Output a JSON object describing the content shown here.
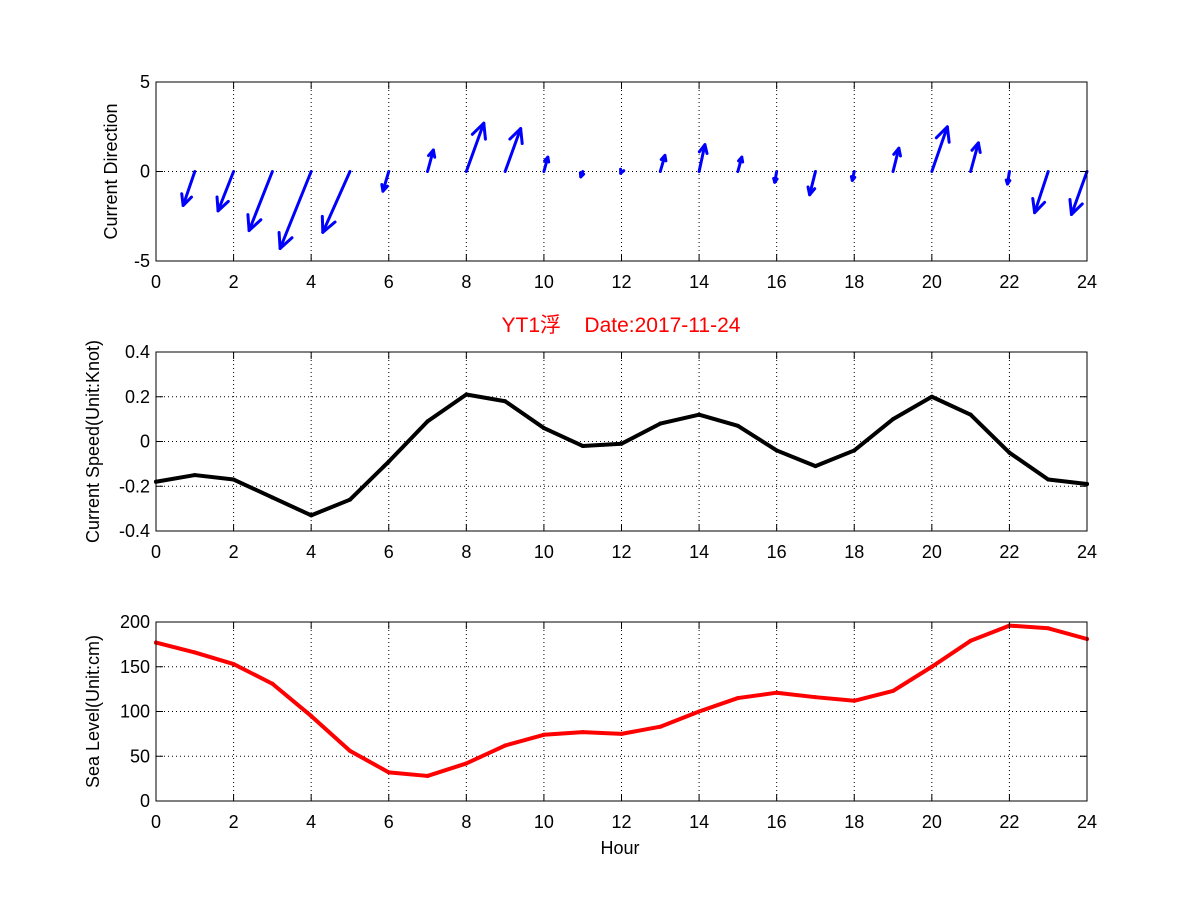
{
  "figure": {
    "title": "YT1浮    Date:2017-11-24",
    "title_color": "#ff0000"
  },
  "chart_data": [
    {
      "type": "quiver",
      "ylabel": "Current Direction",
      "xlim": [
        0,
        24
      ],
      "ylim": [
        -5,
        5
      ],
      "xticks": [
        "0",
        "2",
        "4",
        "6",
        "8",
        "10",
        "12",
        "14",
        "16",
        "18",
        "20",
        "22",
        "24"
      ],
      "yticks": [
        "-5",
        "0",
        "5"
      ],
      "grid": true,
      "color": "#0000ff",
      "vectors": [
        {
          "x": 1,
          "u": -0.3,
          "v": -1.9
        },
        {
          "x": 2,
          "u": -0.4,
          "v": -2.2
        },
        {
          "x": 3,
          "u": -0.6,
          "v": -3.3
        },
        {
          "x": 4,
          "u": -0.8,
          "v": -4.3
        },
        {
          "x": 5,
          "u": -0.7,
          "v": -3.4
        },
        {
          "x": 6,
          "u": -0.15,
          "v": -1.1
        },
        {
          "x": 7,
          "u": 0.15,
          "v": 1.2
        },
        {
          "x": 8,
          "u": 0.45,
          "v": 2.7
        },
        {
          "x": 9,
          "u": 0.4,
          "v": 2.4
        },
        {
          "x": 10,
          "u": 0.1,
          "v": 0.8
        },
        {
          "x": 11,
          "u": -0.05,
          "v": -0.3
        },
        {
          "x": 12,
          "u": -0.02,
          "v": -0.1
        },
        {
          "x": 13,
          "u": 0.12,
          "v": 0.9
        },
        {
          "x": 14,
          "u": 0.15,
          "v": 1.5
        },
        {
          "x": 15,
          "u": 0.1,
          "v": 0.8
        },
        {
          "x": 16,
          "u": -0.05,
          "v": -0.6
        },
        {
          "x": 17,
          "u": -0.15,
          "v": -1.3
        },
        {
          "x": 18,
          "u": -0.05,
          "v": -0.5
        },
        {
          "x": 19,
          "u": 0.15,
          "v": 1.3
        },
        {
          "x": 20,
          "u": 0.4,
          "v": 2.5
        },
        {
          "x": 21,
          "u": 0.2,
          "v": 1.6
        },
        {
          "x": 22,
          "u": -0.05,
          "v": -0.7
        },
        {
          "x": 23,
          "u": -0.35,
          "v": -2.3
        },
        {
          "x": 24,
          "u": -0.4,
          "v": -2.4
        }
      ]
    },
    {
      "type": "line",
      "ylabel": "Current Speed(Unit:Knot)",
      "xlim": [
        0,
        24
      ],
      "ylim": [
        -0.4,
        0.4
      ],
      "xticks": [
        "0",
        "2",
        "4",
        "6",
        "8",
        "10",
        "12",
        "14",
        "16",
        "18",
        "20",
        "22",
        "24"
      ],
      "yticks": [
        "-0.4",
        "-0.2",
        "0",
        "0.2",
        "0.4"
      ],
      "grid": true,
      "color": "#000000",
      "x": [
        0,
        1,
        2,
        3,
        4,
        5,
        6,
        7,
        8,
        9,
        10,
        11,
        12,
        13,
        14,
        15,
        16,
        17,
        18,
        19,
        20,
        21,
        22,
        23,
        24
      ],
      "y": [
        -0.18,
        -0.15,
        -0.17,
        -0.25,
        -0.33,
        -0.26,
        -0.09,
        0.09,
        0.21,
        0.18,
        0.06,
        -0.02,
        -0.01,
        0.08,
        0.12,
        0.07,
        -0.04,
        -0.11,
        -0.04,
        0.1,
        0.2,
        0.12,
        -0.05,
        -0.17,
        -0.19
      ]
    },
    {
      "type": "line",
      "xlabel": "Hour",
      "ylabel": "Sea Level(Unit:cm)",
      "xlim": [
        0,
        24
      ],
      "ylim": [
        0,
        200
      ],
      "xticks": [
        "0",
        "2",
        "4",
        "6",
        "8",
        "10",
        "12",
        "14",
        "16",
        "18",
        "20",
        "22",
        "24"
      ],
      "yticks": [
        "0",
        "50",
        "100",
        "150",
        "200"
      ],
      "grid": true,
      "color": "#ff0000",
      "x": [
        0,
        1,
        2,
        3,
        4,
        5,
        6,
        7,
        8,
        9,
        10,
        11,
        12,
        13,
        14,
        15,
        16,
        17,
        18,
        19,
        20,
        21,
        22,
        23,
        24
      ],
      "y": [
        177,
        166,
        153,
        131,
        95,
        56,
        32,
        28,
        42,
        62,
        74,
        77,
        75,
        83,
        100,
        115,
        121,
        116,
        112,
        123,
        150,
        179,
        196,
        193,
        181
      ]
    }
  ]
}
